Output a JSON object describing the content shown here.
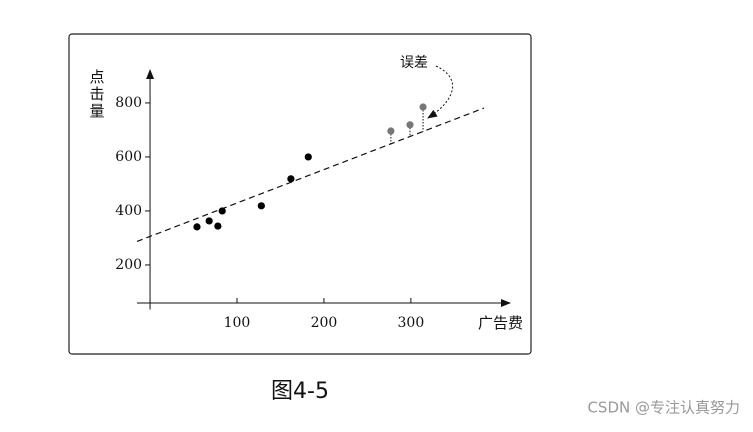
{
  "chart_data": {
    "type": "scatter",
    "y_label": "点击量",
    "x_label": "广告费",
    "annotation": "误差",
    "caption": "图4-5",
    "watermark": "CSDN @专注认真努力",
    "xlim": [
      -15,
      414
    ],
    "ylim": [
      35,
      922
    ],
    "xticks": [
      100,
      200,
      300
    ],
    "yticks": [
      200,
      400,
      600,
      800
    ],
    "series": [
      {
        "color": "#000000",
        "x": [
          54,
          68,
          78,
          83,
          128,
          162,
          182
        ],
        "values": [
          341,
          363,
          344,
          400,
          419,
          519,
          600
        ]
      },
      {
        "color": "#777777",
        "x": [
          277,
          299,
          314
        ],
        "values": [
          696,
          719,
          785
        ],
        "errors": true
      }
    ],
    "fit_line": {
      "x": [
        -15,
        384
      ],
      "values": [
        287,
        781
      ]
    }
  }
}
